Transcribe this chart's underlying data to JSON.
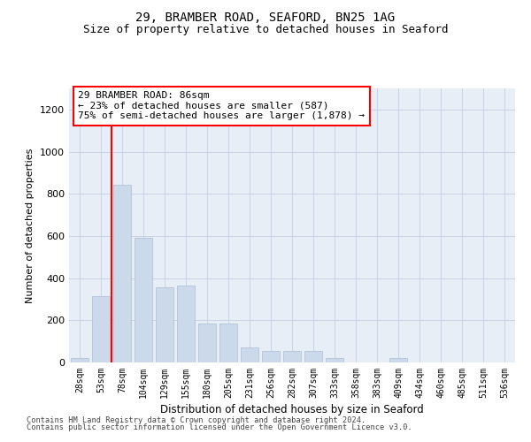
{
  "title1": "29, BRAMBER ROAD, SEAFORD, BN25 1AG",
  "title2": "Size of property relative to detached houses in Seaford",
  "xlabel": "Distribution of detached houses by size in Seaford",
  "ylabel": "Number of detached properties",
  "categories": [
    "28sqm",
    "53sqm",
    "78sqm",
    "104sqm",
    "129sqm",
    "155sqm",
    "180sqm",
    "205sqm",
    "231sqm",
    "256sqm",
    "282sqm",
    "307sqm",
    "333sqm",
    "358sqm",
    "383sqm",
    "409sqm",
    "434sqm",
    "460sqm",
    "485sqm",
    "511sqm",
    "536sqm"
  ],
  "values": [
    20,
    315,
    845,
    590,
    355,
    365,
    185,
    185,
    70,
    55,
    55,
    55,
    20,
    0,
    0,
    20,
    0,
    0,
    0,
    0,
    0
  ],
  "bar_color": "#ccd9eb",
  "bar_edge_color": "#aabdd4",
  "red_line_x": 1.5,
  "annotation_text": "29 BRAMBER ROAD: 86sqm\n← 23% of detached houses are smaller (587)\n75% of semi-detached houses are larger (1,878) →",
  "annotation_box_color": "white",
  "annotation_box_edge_color": "red",
  "ylim": [
    0,
    1300
  ],
  "yticks": [
    0,
    200,
    400,
    600,
    800,
    1000,
    1200
  ],
  "grid_color": "#c8d4e3",
  "background_color": "#e8eef5",
  "title1_fontsize": 10,
  "title2_fontsize": 9,
  "footer1": "Contains HM Land Registry data © Crown copyright and database right 2024.",
  "footer2": "Contains public sector information licensed under the Open Government Licence v3.0."
}
